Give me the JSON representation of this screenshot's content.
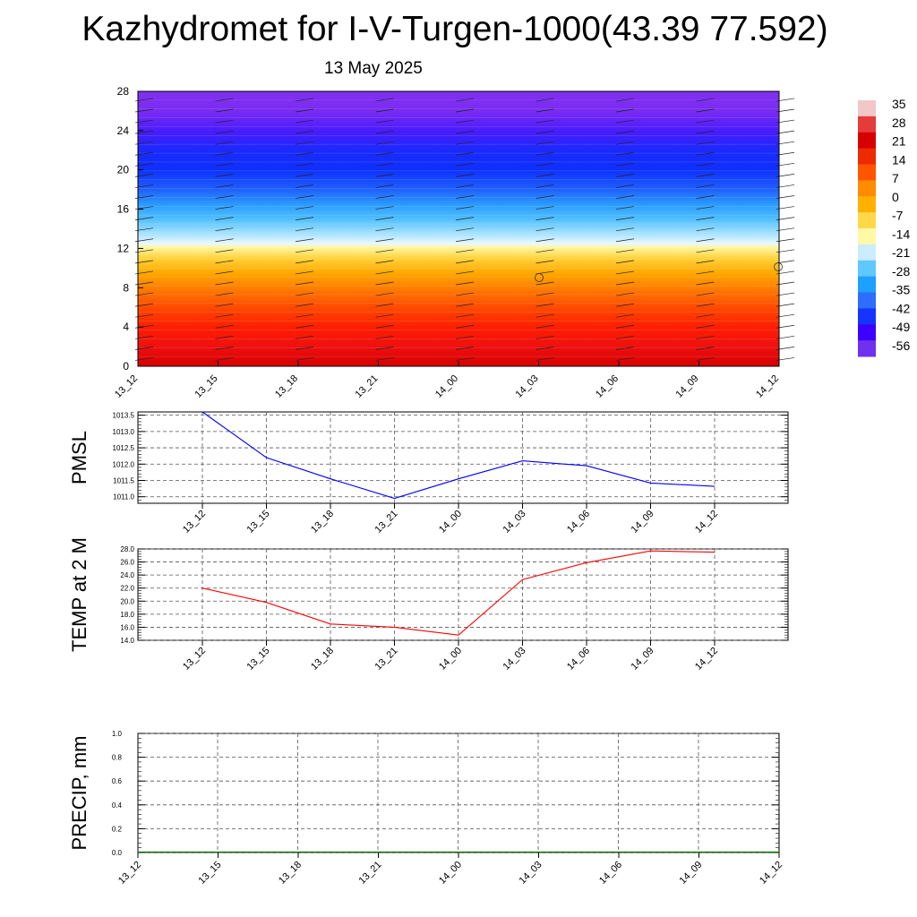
{
  "title": "Kazhydromet for I-V-Turgen-1000(43.39 77.592)",
  "subtitle": "13 May 2025",
  "colors": {
    "pmsl_line": "#0000ff",
    "temp_line": "#ff0000",
    "precip_line": "#007a00",
    "grid": "#555555"
  },
  "chart_data": [
    {
      "type": "heatmap",
      "name": "vertical-section",
      "x_ticks": [
        "13_12",
        "13_15",
        "13_18",
        "13_21",
        "14_00",
        "14_03",
        "14_06",
        "14_09",
        "14_12"
      ],
      "y_ticks": [
        "0",
        "4",
        "8",
        "12",
        "16",
        "20",
        "24",
        "28"
      ],
      "ylim": [
        0,
        28
      ],
      "colorbar_labels": [
        "35",
        "28",
        "21",
        "14",
        "7",
        "0",
        "-7",
        "-14",
        "-21",
        "-28",
        "-35",
        "-42",
        "-49",
        "-56"
      ],
      "colorbar_colors": [
        "#f2c7c7",
        "#e63b3b",
        "#d60000",
        "#ee2a00",
        "#ff5500",
        "#ff8c00",
        "#ffb000",
        "#ffd84a",
        "#fff9a6",
        "#ccecff",
        "#5fc8ff",
        "#1ea0ff",
        "#2d6dff",
        "#1535ff",
        "#3b00ff",
        "#7030f0"
      ],
      "profile": [
        {
          "y": 0,
          "color": "#d80000"
        },
        {
          "y": 2,
          "color": "#ee1010"
        },
        {
          "y": 4,
          "color": "#ff1e00"
        },
        {
          "y": 6,
          "color": "#ff4a00"
        },
        {
          "y": 8,
          "color": "#ff7f00"
        },
        {
          "y": 9.5,
          "color": "#ffa800"
        },
        {
          "y": 11,
          "color": "#ffd23c"
        },
        {
          "y": 12.1,
          "color": "#fff6a0"
        },
        {
          "y": 12.5,
          "color": "#e8f8ff"
        },
        {
          "y": 13.5,
          "color": "#a8e2ff"
        },
        {
          "y": 15,
          "color": "#50c0ff"
        },
        {
          "y": 16.5,
          "color": "#2a9aff"
        },
        {
          "y": 18,
          "color": "#2060ff"
        },
        {
          "y": 20,
          "color": "#0e30ff"
        },
        {
          "y": 22,
          "color": "#1a2aff"
        },
        {
          "y": 24,
          "color": "#4a1cff"
        },
        {
          "y": 26,
          "color": "#7a2cf2"
        },
        {
          "y": 28,
          "color": "#8030f0"
        }
      ]
    },
    {
      "type": "line",
      "name": "pmsl",
      "ylabel": "PMSL",
      "x": [
        "13_12",
        "13_15",
        "13_18",
        "13_21",
        "14_00",
        "14_03",
        "14_06",
        "14_09",
        "14_12"
      ],
      "values": [
        1013.6,
        1012.2,
        1011.55,
        1010.95,
        1011.55,
        1012.1,
        1011.95,
        1011.42,
        1011.32
      ],
      "ylim": [
        1010.8,
        1013.6
      ],
      "y_ticks": [
        "1011.0",
        "1011.5",
        "1012.0",
        "1012.5",
        "1013.0",
        "1013.5"
      ],
      "y_tick_values": [
        1011.0,
        1011.5,
        1012.0,
        1012.5,
        1013.0,
        1013.5
      ]
    },
    {
      "type": "line",
      "name": "temp",
      "ylabel": "TEMP at 2 M",
      "x": [
        "13_12",
        "13_15",
        "13_18",
        "13_21",
        "14_00",
        "14_03",
        "14_06",
        "14_09",
        "14_12"
      ],
      "values": [
        22.0,
        19.8,
        16.5,
        16.0,
        14.8,
        23.3,
        25.9,
        27.7,
        27.5
      ],
      "ylim": [
        14.0,
        28.0
      ],
      "y_ticks": [
        "14.0",
        "16.0",
        "18.0",
        "20.0",
        "22.0",
        "24.0",
        "26.0",
        "28.0"
      ],
      "y_tick_values": [
        14.0,
        16.0,
        18.0,
        20.0,
        22.0,
        24.0,
        26.0,
        28.0
      ]
    },
    {
      "type": "line",
      "name": "precip",
      "ylabel": "PRECIP, mm",
      "x": [
        "13_12",
        "13_15",
        "13_18",
        "13_21",
        "14_00",
        "14_03",
        "14_06",
        "14_09",
        "14_12"
      ],
      "values": [
        0,
        0,
        0,
        0,
        0,
        0,
        0,
        0,
        0
      ],
      "ylim": [
        0,
        1.0
      ],
      "y_ticks": [
        "0.0",
        "0.2",
        "0.4",
        "0.6",
        "0.8",
        "1.0"
      ],
      "y_tick_values": [
        0.0,
        0.2,
        0.4,
        0.6,
        0.8,
        1.0
      ]
    }
  ]
}
